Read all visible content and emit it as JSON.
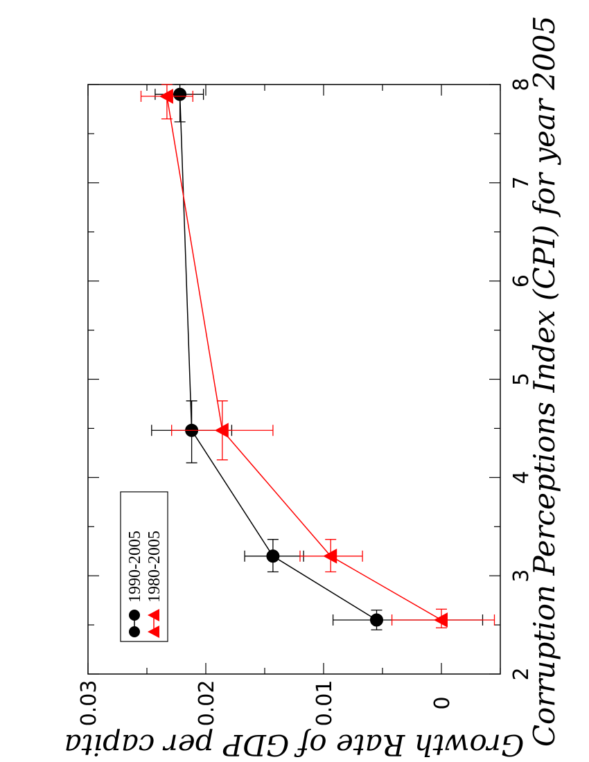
{
  "chart_data": {
    "type": "scatter",
    "title": "",
    "xlabel": "Corruption Perceptions Index (CPI) for year 2005",
    "ylabel": "Growth Rate of GDP per capita",
    "xlim": [
      2,
      8
    ],
    "ylim": [
      -0.005,
      0.03
    ],
    "x_ticks": [
      "2",
      "3",
      "4",
      "5",
      "6",
      "7",
      "8"
    ],
    "y_ticks": [
      "0",
      "0.01",
      "0.02",
      "0.03"
    ],
    "legend_position": "bottom-left",
    "series": [
      {
        "name": "1990-2005",
        "color": "#000000",
        "marker": "circle",
        "x": [
          2.55,
          3.2,
          4.48,
          7.9
        ],
        "y": [
          0.0055,
          0.0143,
          0.0212,
          0.0222
        ],
        "x_err_low": [
          2.45,
          3.04,
          4.15,
          7.62
        ],
        "x_err_high": [
          2.65,
          3.37,
          4.78,
          8.0
        ],
        "y_err_low": [
          -0.0035,
          0.0117,
          0.0178,
          0.0202
        ],
        "y_err_high": [
          0.0092,
          0.0167,
          0.0246,
          0.0243
        ]
      },
      {
        "name": "1980-2005",
        "color": "#ff0000",
        "marker": "triangle",
        "x": [
          2.55,
          3.2,
          4.48,
          7.88
        ],
        "y": [
          0.0,
          0.0094,
          0.0186,
          0.0233
        ],
        "x_err_low": [
          2.47,
          3.04,
          4.18,
          7.65
        ],
        "x_err_high": [
          2.66,
          3.37,
          4.78,
          8.0
        ],
        "y_err_low": [
          -0.0045,
          0.0067,
          0.0143,
          0.0211
        ],
        "y_err_high": [
          0.0042,
          0.012,
          0.0229,
          0.0255
        ]
      }
    ]
  }
}
